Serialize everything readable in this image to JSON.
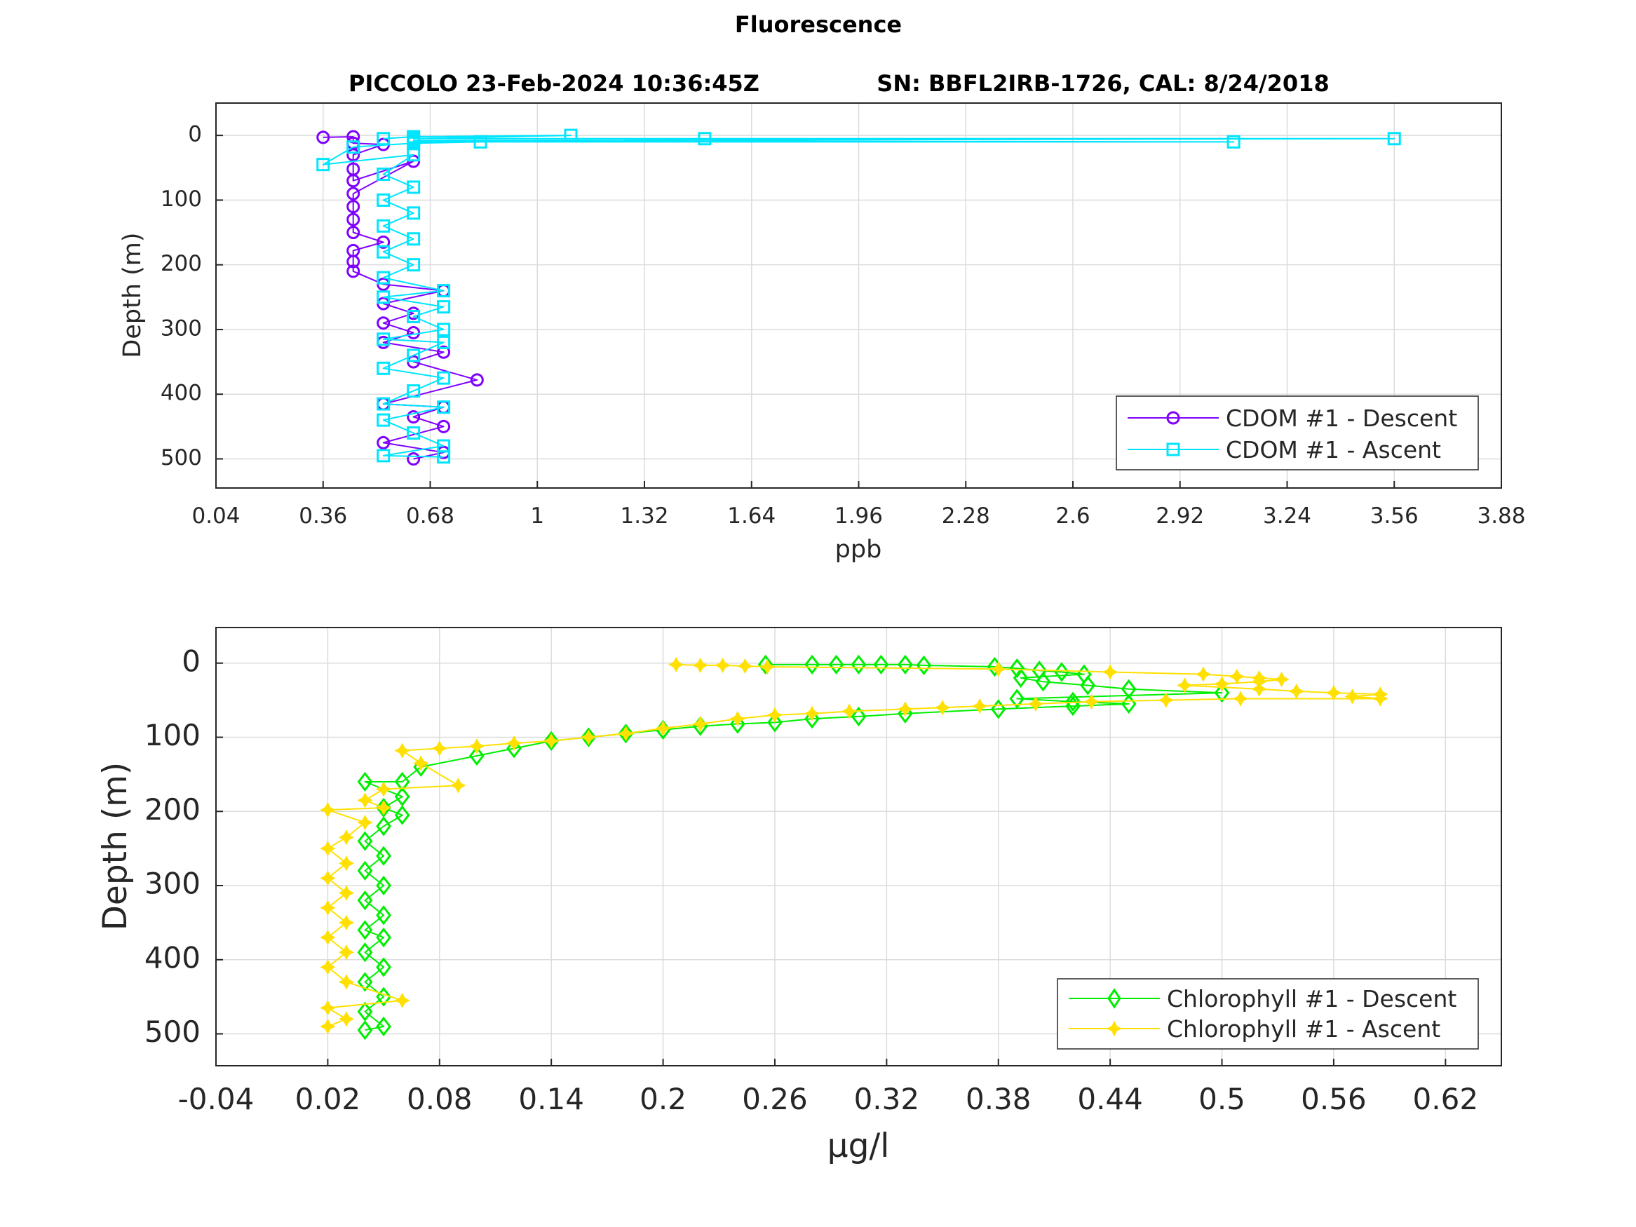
{
  "figure": {
    "title": "Fluorescence",
    "subtitle_left": "PICCOLO 23-Feb-2024 10:36:45Z",
    "subtitle_right": "SN: BBFL2IRB-1726, CAL: 8/24/2018"
  },
  "colors": {
    "cdom_descent": "#8000ff",
    "cdom_ascent": "#00e5ff",
    "chl_descent": "#00ee00",
    "chl_ascent": "#ffe000"
  },
  "chart_data": [
    {
      "type": "line",
      "xlabel": "ppb",
      "ylabel": "Depth (m)",
      "xlim": [
        0.04,
        3.88
      ],
      "ylim": [
        -50,
        545
      ],
      "y_reversed": true,
      "grid": true,
      "legend_position": "bottom-right",
      "x_ticks": [
        "0.04",
        "0.36",
        "0.68",
        "1",
        "1.32",
        "1.64",
        "1.96",
        "2.28",
        "2.6",
        "2.92",
        "3.24",
        "3.56",
        "3.88"
      ],
      "y_ticks": [
        "0",
        "100",
        "200",
        "300",
        "400",
        "500"
      ],
      "series": [
        {
          "name": "CDOM #1 - Descent",
          "color": "#8000ff",
          "marker": "circle",
          "points": [
            [
              0.36,
              3
            ],
            [
              0.45,
              2
            ],
            [
              0.45,
              12
            ],
            [
              0.54,
              14
            ],
            [
              0.45,
              30
            ],
            [
              0.45,
              52
            ],
            [
              0.45,
              70
            ],
            [
              0.63,
              40
            ],
            [
              0.45,
              90
            ],
            [
              0.45,
              110
            ],
            [
              0.45,
              130
            ],
            [
              0.45,
              150
            ],
            [
              0.54,
              165
            ],
            [
              0.45,
              178
            ],
            [
              0.45,
              195
            ],
            [
              0.45,
              210
            ],
            [
              0.54,
              230
            ],
            [
              0.72,
              240
            ],
            [
              0.54,
              260
            ],
            [
              0.63,
              275
            ],
            [
              0.54,
              290
            ],
            [
              0.63,
              305
            ],
            [
              0.54,
              320
            ],
            [
              0.72,
              335
            ],
            [
              0.63,
              350
            ],
            [
              0.82,
              378
            ],
            [
              0.54,
              415
            ],
            [
              0.72,
              420
            ],
            [
              0.63,
              435
            ],
            [
              0.72,
              450
            ],
            [
              0.54,
              475
            ],
            [
              0.72,
              490
            ],
            [
              0.63,
              500
            ]
          ]
        },
        {
          "name": "CDOM #1 - Ascent",
          "color": "#00e5ff",
          "marker": "square",
          "points": [
            [
              0.54,
              5
            ],
            [
              0.63,
              2
            ],
            [
              1.1,
              0
            ],
            [
              0.63,
              5
            ],
            [
              1.5,
              5
            ],
            [
              3.56,
              5
            ],
            [
              0.63,
              8
            ],
            [
              3.08,
              10
            ],
            [
              0.63,
              10
            ],
            [
              0.83,
              10
            ],
            [
              0.63,
              12
            ],
            [
              0.45,
              18
            ],
            [
              0.36,
              45
            ],
            [
              0.63,
              30
            ],
            [
              0.54,
              60
            ],
            [
              0.63,
              80
            ],
            [
              0.54,
              100
            ],
            [
              0.63,
              120
            ],
            [
              0.54,
              140
            ],
            [
              0.63,
              160
            ],
            [
              0.54,
              180
            ],
            [
              0.63,
              200
            ],
            [
              0.54,
              220
            ],
            [
              0.72,
              240
            ],
            [
              0.54,
              250
            ],
            [
              0.72,
              265
            ],
            [
              0.63,
              280
            ],
            [
              0.72,
              300
            ],
            [
              0.54,
              315
            ],
            [
              0.72,
              320
            ],
            [
              0.63,
              340
            ],
            [
              0.54,
              360
            ],
            [
              0.72,
              375
            ],
            [
              0.63,
              395
            ],
            [
              0.54,
              415
            ],
            [
              0.72,
              420
            ],
            [
              0.54,
              440
            ],
            [
              0.63,
              460
            ],
            [
              0.72,
              480
            ],
            [
              0.54,
              495
            ],
            [
              0.72,
              497
            ]
          ]
        }
      ]
    },
    {
      "type": "line",
      "xlabel": "μg/l",
      "ylabel": "Depth (m)",
      "xlim": [
        -0.04,
        0.65
      ],
      "ylim": [
        -48,
        543
      ],
      "y_reversed": true,
      "grid": true,
      "legend_position": "bottom-right",
      "x_ticks": [
        "-0.04",
        "0.02",
        "0.08",
        "0.14",
        "0.2",
        "0.26",
        "0.32",
        "0.38",
        "0.44",
        "0.5",
        "0.56",
        "0.62"
      ],
      "y_ticks": [
        "0",
        "100",
        "200",
        "300",
        "400",
        "500"
      ],
      "series": [
        {
          "name": "Chlorophyll #1 - Descent",
          "color": "#00ee00",
          "marker": "diamond",
          "points": [
            [
              0.255,
              2
            ],
            [
              0.28,
              2
            ],
            [
              0.293,
              2
            ],
            [
              0.305,
              2
            ],
            [
              0.317,
              2
            ],
            [
              0.33,
              2
            ],
            [
              0.34,
              3
            ],
            [
              0.378,
              5
            ],
            [
              0.39,
              7
            ],
            [
              0.402,
              10
            ],
            [
              0.414,
              12
            ],
            [
              0.426,
              15
            ],
            [
              0.392,
              20
            ],
            [
              0.404,
              25
            ],
            [
              0.428,
              30
            ],
            [
              0.45,
              35
            ],
            [
              0.5,
              40
            ],
            [
              0.39,
              48
            ],
            [
              0.42,
              52
            ],
            [
              0.45,
              55
            ],
            [
              0.42,
              58
            ],
            [
              0.38,
              62
            ],
            [
              0.33,
              68
            ],
            [
              0.305,
              72
            ],
            [
              0.28,
              75
            ],
            [
              0.26,
              80
            ],
            [
              0.24,
              82
            ],
            [
              0.22,
              85
            ],
            [
              0.2,
              90
            ],
            [
              0.18,
              95
            ],
            [
              0.16,
              100
            ],
            [
              0.14,
              105
            ],
            [
              0.12,
              115
            ],
            [
              0.1,
              125
            ],
            [
              0.07,
              140
            ],
            [
              0.06,
              160
            ],
            [
              0.04,
              160
            ],
            [
              0.06,
              180
            ],
            [
              0.05,
              195
            ],
            [
              0.06,
              205
            ],
            [
              0.05,
              220
            ],
            [
              0.04,
              240
            ],
            [
              0.05,
              260
            ],
            [
              0.04,
              280
            ],
            [
              0.05,
              300
            ],
            [
              0.04,
              320
            ],
            [
              0.05,
              340
            ],
            [
              0.04,
              360
            ],
            [
              0.05,
              370
            ],
            [
              0.04,
              390
            ],
            [
              0.05,
              410
            ],
            [
              0.04,
              430
            ],
            [
              0.05,
              450
            ],
            [
              0.04,
              470
            ],
            [
              0.05,
              490
            ],
            [
              0.04,
              495
            ]
          ]
        },
        {
          "name": "Chlorophyll #1 - Ascent",
          "color": "#ffe000",
          "marker": "star",
          "points": [
            [
              0.207,
              2
            ],
            [
              0.22,
              3
            ],
            [
              0.232,
              3
            ],
            [
              0.244,
              4
            ],
            [
              0.256,
              5
            ],
            [
              0.38,
              8
            ],
            [
              0.44,
              12
            ],
            [
              0.49,
              15
            ],
            [
              0.508,
              18
            ],
            [
              0.52,
              20
            ],
            [
              0.532,
              22
            ],
            [
              0.52,
              25
            ],
            [
              0.5,
              28
            ],
            [
              0.48,
              30
            ],
            [
              0.52,
              35
            ],
            [
              0.54,
              38
            ],
            [
              0.56,
              40
            ],
            [
              0.585,
              42
            ],
            [
              0.57,
              45
            ],
            [
              0.585,
              48
            ],
            [
              0.51,
              48
            ],
            [
              0.47,
              50
            ],
            [
              0.43,
              52
            ],
            [
              0.4,
              55
            ],
            [
              0.37,
              58
            ],
            [
              0.35,
              60
            ],
            [
              0.33,
              62
            ],
            [
              0.3,
              65
            ],
            [
              0.28,
              68
            ],
            [
              0.26,
              70
            ],
            [
              0.24,
              75
            ],
            [
              0.22,
              82
            ],
            [
              0.2,
              88
            ],
            [
              0.18,
              95
            ],
            [
              0.16,
              100
            ],
            [
              0.14,
              105
            ],
            [
              0.12,
              108
            ],
            [
              0.1,
              112
            ],
            [
              0.08,
              115
            ],
            [
              0.06,
              118
            ],
            [
              0.07,
              135
            ],
            [
              0.09,
              165
            ],
            [
              0.05,
              170
            ],
            [
              0.04,
              185
            ],
            [
              0.05,
              195
            ],
            [
              0.02,
              198
            ],
            [
              0.04,
              215
            ],
            [
              0.03,
              235
            ],
            [
              0.02,
              250
            ],
            [
              0.03,
              270
            ],
            [
              0.02,
              290
            ],
            [
              0.03,
              310
            ],
            [
              0.02,
              330
            ],
            [
              0.03,
              350
            ],
            [
              0.02,
              370
            ],
            [
              0.03,
              390
            ],
            [
              0.02,
              410
            ],
            [
              0.03,
              430
            ],
            [
              0.06,
              455
            ],
            [
              0.02,
              465
            ],
            [
              0.03,
              480
            ],
            [
              0.02,
              490
            ]
          ]
        }
      ]
    }
  ]
}
